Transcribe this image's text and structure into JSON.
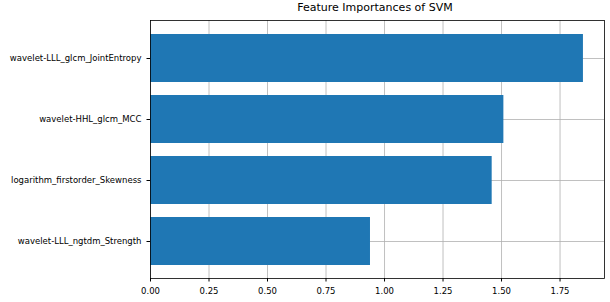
{
  "chart_data": {
    "type": "bar",
    "orientation": "horizontal",
    "title": "Feature Importances of SVM",
    "categories": [
      "wavelet-LLL_glcm_JointEntropy",
      "wavelet-HHL_glcm_MCC",
      "logarithm_firstorder_Skewness",
      "wavelet-LLL_ngtdm_Strength"
    ],
    "values": [
      1.85,
      1.51,
      1.46,
      0.94
    ],
    "color": "#1f77b4",
    "xlim": [
      0,
      1.94
    ],
    "xticks": [
      {
        "value": 0,
        "label": "0.00"
      },
      {
        "value": 0.25,
        "label": "0.25"
      },
      {
        "value": 0.5,
        "label": "0.50"
      },
      {
        "value": 0.75,
        "label": "0.75"
      },
      {
        "value": 1,
        "label": "1.00"
      },
      {
        "value": 1.25,
        "label": "1.25"
      },
      {
        "value": 1.5,
        "label": "1.50"
      },
      {
        "value": 1.75,
        "label": "1.75"
      }
    ],
    "grid": true
  }
}
